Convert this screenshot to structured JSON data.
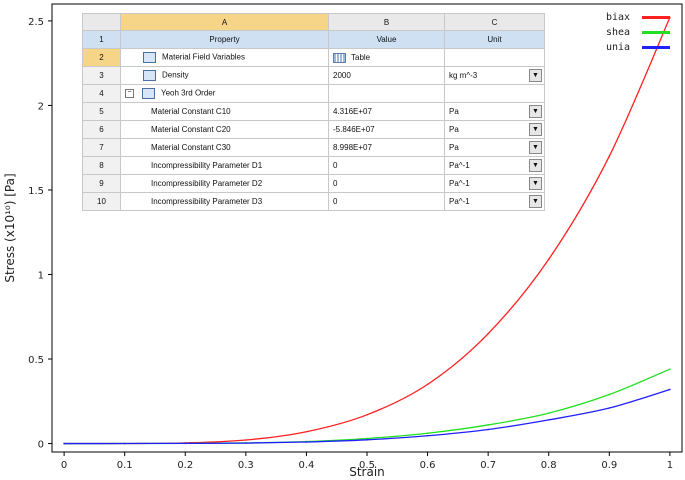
{
  "chart_data": {
    "type": "line",
    "xlabel": "Strain",
    "ylabel": "Stress  (x10¹⁰)  [Pa]",
    "xlim": [
      -0.02,
      1.02
    ],
    "ylim": [
      -0.05,
      2.6
    ],
    "xticks": [
      "0",
      "0.1",
      "0.2",
      "0.3",
      "0.4",
      "0.5",
      "0.6",
      "0.7",
      "0.8",
      "0.9",
      "1"
    ],
    "yticks": [
      "0",
      "0.5",
      "1",
      "1.5",
      "2",
      "2.5"
    ],
    "series": [
      {
        "name": "biax",
        "color": "#ff2020",
        "x": [
          0,
          0.1,
          0.2,
          0.3,
          0.4,
          0.5,
          0.6,
          0.7,
          0.8,
          0.9,
          1.0
        ],
        "y": [
          0,
          0.0003,
          0.004,
          0.021,
          0.07,
          0.17,
          0.35,
          0.65,
          1.09,
          1.7,
          2.52
        ]
      },
      {
        "name": "shea",
        "color": "#20e020",
        "x": [
          0,
          0.1,
          0.2,
          0.3,
          0.4,
          0.5,
          0.6,
          0.7,
          0.8,
          0.9,
          1.0
        ],
        "y": [
          0,
          0.0001,
          0.001,
          0.0035,
          0.012,
          0.03,
          0.061,
          0.11,
          0.18,
          0.29,
          0.44
        ]
      },
      {
        "name": "unia",
        "color": "#2020ff",
        "x": [
          0,
          0.1,
          0.2,
          0.3,
          0.4,
          0.5,
          0.6,
          0.7,
          0.8,
          0.9,
          1.0
        ],
        "y": [
          0,
          0.0001,
          0.0008,
          0.0027,
          0.009,
          0.022,
          0.046,
          0.083,
          0.14,
          0.21,
          0.32
        ]
      }
    ],
    "legend_position": "top-right",
    "grid": false
  },
  "table": {
    "headers": [
      "A",
      "B",
      "C"
    ],
    "columns": [
      "Property",
      "Value",
      "Unit"
    ],
    "rows": [
      {
        "num": "2",
        "property": "Material Field Variables",
        "value": "Table",
        "unit": "",
        "icon": "table-icon"
      },
      {
        "num": "3",
        "property": "Density",
        "value": "2000",
        "unit": "kg m^-3",
        "icon": "property-icon"
      },
      {
        "num": "4",
        "property": "Yeoh 3rd Order",
        "value": "",
        "unit": "",
        "icon": "property-icon"
      },
      {
        "num": "5",
        "property": "Material Constant C10",
        "value": "4.316E+07",
        "unit": "Pa"
      },
      {
        "num": "6",
        "property": "Material Constant C20",
        "value": "-5.846E+07",
        "unit": "Pa"
      },
      {
        "num": "7",
        "property": "Material Constant C30",
        "value": "8.998E+07",
        "unit": "Pa"
      },
      {
        "num": "8",
        "property": "Incompressibility Parameter D1",
        "value": "0",
        "unit": "Pa^-1"
      },
      {
        "num": "9",
        "property": "Incompressibility Parameter D2",
        "value": "0",
        "unit": "Pa^-1"
      },
      {
        "num": "10",
        "property": "Incompressibility Parameter D3",
        "value": "0",
        "unit": "Pa^-1"
      }
    ],
    "header_row_num": "1"
  }
}
